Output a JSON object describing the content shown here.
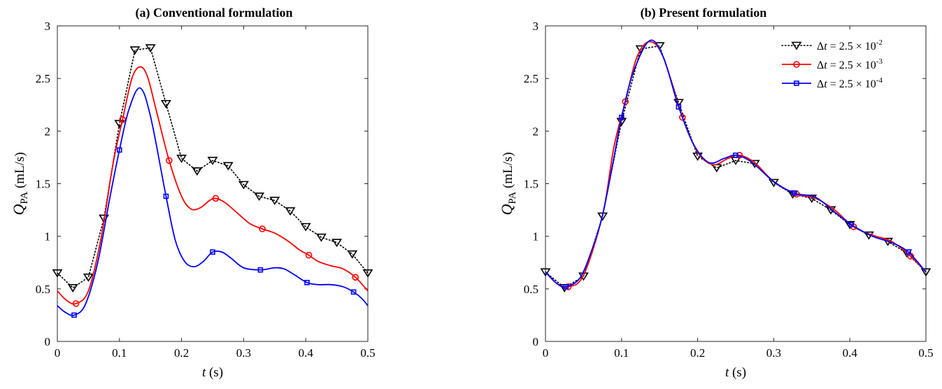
{
  "figure": {
    "panels": [
      {
        "title": "(a) Conventional formulation"
      },
      {
        "title": "(b) Present formulation"
      }
    ],
    "legend": [
      {
        "label_pre": "Δt = 2.5 × 10",
        "exponent": "-2",
        "color": "#000000",
        "marker": "triangle-down",
        "style": "dotted"
      },
      {
        "label_pre": "Δt = 2.5 × 10",
        "exponent": "-3",
        "color": "#ff0000",
        "marker": "circle",
        "style": "solid"
      },
      {
        "label_pre": "Δt = 2.5 × 10",
        "exponent": "-4",
        "color": "#0000ff",
        "marker": "square",
        "style": "solid"
      }
    ]
  },
  "chart_data": [
    {
      "type": "line",
      "title": "(a) Conventional formulation",
      "xlabel": "t (s)",
      "ylabel": "Q_PA (mL/s)",
      "xlim": [
        0,
        0.5
      ],
      "ylim": [
        0,
        3
      ],
      "xticks": [
        "0",
        "0.1",
        "0.2",
        "0.3",
        "0.4",
        "0.5"
      ],
      "yticks": [
        "0",
        "0.5",
        "1",
        "1.5",
        "2",
        "2.5",
        "3"
      ],
      "grid": false,
      "series": [
        {
          "name": "Δt = 2.5 × 10^-2",
          "color": "#000000",
          "style": "dotted",
          "marker": "triangle-down",
          "x": [
            0,
            0.025,
            0.05,
            0.075,
            0.1,
            0.125,
            0.15,
            0.175,
            0.2,
            0.225,
            0.25,
            0.275,
            0.3,
            0.325,
            0.35,
            0.375,
            0.4,
            0.425,
            0.45,
            0.475,
            0.5
          ],
          "y": [
            0.65,
            0.51,
            0.61,
            1.17,
            2.07,
            2.77,
            2.79,
            2.26,
            1.74,
            1.62,
            1.72,
            1.67,
            1.49,
            1.38,
            1.34,
            1.24,
            1.09,
            0.99,
            0.94,
            0.83,
            0.65
          ],
          "markers_x": [
            0,
            0.025,
            0.05,
            0.075,
            0.1,
            0.125,
            0.15,
            0.175,
            0.2,
            0.225,
            0.25,
            0.275,
            0.3,
            0.325,
            0.35,
            0.375,
            0.4,
            0.425,
            0.45,
            0.475,
            0.5
          ]
        },
        {
          "name": "Δt = 2.5 × 10^-3",
          "color": "#ff0000",
          "style": "solid",
          "marker": "circle",
          "x": [
            0,
            0.015,
            0.03,
            0.05,
            0.07,
            0.09,
            0.105,
            0.12,
            0.133,
            0.145,
            0.16,
            0.18,
            0.2,
            0.215,
            0.23,
            0.245,
            0.255,
            0.27,
            0.29,
            0.31,
            0.33,
            0.35,
            0.37,
            0.39,
            0.405,
            0.42,
            0.44,
            0.46,
            0.48,
            0.5
          ],
          "y": [
            0.48,
            0.39,
            0.36,
            0.48,
            0.97,
            1.7,
            2.11,
            2.5,
            2.61,
            2.52,
            2.18,
            1.72,
            1.38,
            1.26,
            1.27,
            1.34,
            1.36,
            1.32,
            1.22,
            1.12,
            1.07,
            1.03,
            0.96,
            0.87,
            0.82,
            0.76,
            0.72,
            0.69,
            0.61,
            0.48
          ],
          "markers_x": [
            0.03,
            0.105,
            0.18,
            0.255,
            0.33,
            0.405,
            0.48
          ]
        },
        {
          "name": "Δt = 2.5 × 10^-4",
          "color": "#0000ff",
          "style": "solid",
          "marker": "square",
          "x": [
            0,
            0.012,
            0.027,
            0.045,
            0.065,
            0.085,
            0.1,
            0.115,
            0.133,
            0.15,
            0.175,
            0.19,
            0.205,
            0.22,
            0.235,
            0.25,
            0.265,
            0.28,
            0.3,
            0.327,
            0.35,
            0.365,
            0.38,
            0.402,
            0.42,
            0.44,
            0.46,
            0.477,
            0.49,
            0.5
          ],
          "y": [
            0.34,
            0.28,
            0.25,
            0.35,
            0.75,
            1.38,
            1.82,
            2.2,
            2.41,
            2.14,
            1.38,
            0.96,
            0.76,
            0.71,
            0.76,
            0.85,
            0.85,
            0.79,
            0.7,
            0.68,
            0.7,
            0.69,
            0.64,
            0.56,
            0.54,
            0.54,
            0.52,
            0.47,
            0.41,
            0.34
          ],
          "markers_x": [
            0.027,
            0.1,
            0.175,
            0.25,
            0.327,
            0.402,
            0.477
          ]
        }
      ]
    },
    {
      "type": "line",
      "title": "(b) Present formulation",
      "xlabel": "t (s)",
      "ylabel": "Q_PA (mL/s)",
      "xlim": [
        0,
        0.5
      ],
      "ylim": [
        0,
        3
      ],
      "xticks": [
        "0",
        "0.1",
        "0.2",
        "0.3",
        "0.4",
        "0.5"
      ],
      "yticks": [
        "0",
        "0.5",
        "1",
        "1.5",
        "2",
        "2.5",
        "3"
      ],
      "grid": false,
      "legend_position": "top-right",
      "series": [
        {
          "name": "Δt = 2.5 × 10^-2",
          "color": "#000000",
          "style": "dotted",
          "marker": "triangle-down",
          "x": [
            0,
            0.025,
            0.05,
            0.075,
            0.1,
            0.125,
            0.15,
            0.175,
            0.2,
            0.225,
            0.25,
            0.275,
            0.3,
            0.325,
            0.35,
            0.375,
            0.4,
            0.425,
            0.45,
            0.475,
            0.5
          ],
          "y": [
            0.66,
            0.51,
            0.62,
            1.19,
            2.09,
            2.78,
            2.81,
            2.27,
            1.76,
            1.65,
            1.72,
            1.69,
            1.51,
            1.4,
            1.36,
            1.25,
            1.11,
            1.01,
            0.95,
            0.84,
            0.66
          ],
          "markers_x": [
            0,
            0.025,
            0.05,
            0.075,
            0.1,
            0.125,
            0.15,
            0.175,
            0.2,
            0.225,
            0.25,
            0.275,
            0.3,
            0.325,
            0.35,
            0.375,
            0.4,
            0.425,
            0.45,
            0.475,
            0.5
          ]
        },
        {
          "name": "Δt = 2.5 × 10^-3",
          "color": "#ff0000",
          "style": "solid",
          "marker": "circle",
          "x": [
            0,
            0.015,
            0.03,
            0.05,
            0.075,
            0.09,
            0.105,
            0.12,
            0.137,
            0.155,
            0.18,
            0.2,
            0.22,
            0.24,
            0.255,
            0.275,
            0.3,
            0.33,
            0.355,
            0.38,
            0.405,
            0.43,
            0.455,
            0.48,
            0.5
          ],
          "y": [
            0.66,
            0.55,
            0.52,
            0.63,
            1.2,
            1.85,
            2.28,
            2.7,
            2.85,
            2.7,
            2.13,
            1.8,
            1.68,
            1.74,
            1.77,
            1.7,
            1.52,
            1.4,
            1.36,
            1.25,
            1.09,
            1.01,
            0.95,
            0.81,
            0.66
          ],
          "markers_x": [
            0.03,
            0.105,
            0.18,
            0.255,
            0.33,
            0.405,
            0.48
          ]
        },
        {
          "name": "Δt = 2.5 × 10^-4",
          "color": "#0000ff",
          "style": "solid",
          "marker": "square",
          "x": [
            0,
            0.015,
            0.027,
            0.045,
            0.06,
            0.075,
            0.09,
            0.1,
            0.115,
            0.137,
            0.155,
            0.175,
            0.195,
            0.215,
            0.235,
            0.25,
            0.27,
            0.3,
            0.327,
            0.355,
            0.38,
            0.402,
            0.43,
            0.455,
            0.477,
            0.5
          ],
          "y": [
            0.66,
            0.55,
            0.52,
            0.6,
            0.85,
            1.2,
            1.75,
            2.13,
            2.55,
            2.86,
            2.7,
            2.23,
            1.87,
            1.7,
            1.74,
            1.77,
            1.71,
            1.52,
            1.41,
            1.37,
            1.23,
            1.11,
            1.0,
            0.94,
            0.85,
            0.66
          ],
          "markers_x": [
            0.027,
            0.1,
            0.175,
            0.25,
            0.327,
            0.402,
            0.477
          ]
        }
      ]
    }
  ]
}
